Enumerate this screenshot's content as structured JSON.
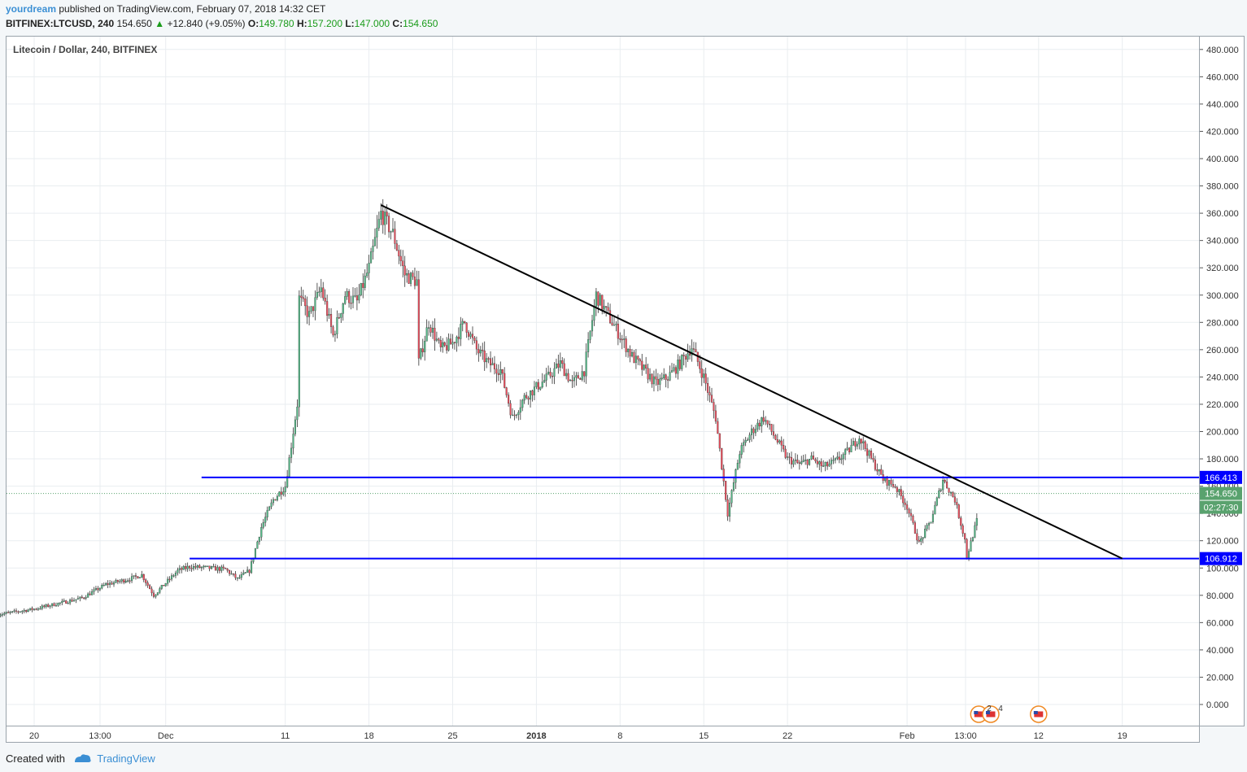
{
  "header": {
    "user": "yourdream",
    "published_text": " published on TradingView.com, February 07, 2018 14:32 CET",
    "symbol": "BITFINEX:LTCUSD, 240",
    "last": "154.650",
    "change_arrow": "▲",
    "change": "+12.840 (+9.05%)",
    "o_label": "O:",
    "o_value": "149.780",
    "h_label": "H:",
    "h_value": "157.200",
    "l_label": "L:",
    "l_value": "147.000",
    "c_label": "C:",
    "c_value": "154.650"
  },
  "chart_label": "Litecoin / Dollar, 240, BITFINEX",
  "footer": {
    "created_with": "Created with",
    "brand": "TradingView"
  },
  "colors": {
    "up": "#53b987",
    "down": "#eb4d5c",
    "level": "#0000ff",
    "trend": "#000000",
    "grid": "#e9edf0",
    "box_blue": "#0000ff",
    "box_green": "#59a26e",
    "text_green": "#1a9b1a",
    "brand": "#3b8fd4"
  },
  "chart_data": {
    "type": "candlestick",
    "title": "Litecoin / Dollar, 240, BITFINEX",
    "ylim": [
      -15,
      485
    ],
    "yticks": [
      "480.000",
      "460.000",
      "440.000",
      "420.000",
      "400.000",
      "380.000",
      "360.000",
      "340.000",
      "320.000",
      "300.000",
      "280.000",
      "260.000",
      "240.000",
      "220.000",
      "200.000",
      "180.000",
      "160.000",
      "140.000",
      "120.000",
      "100.000",
      "80.000",
      "60.000",
      "40.000",
      "20.000",
      "0.000"
    ],
    "x_labels": [
      "20",
      "13:00",
      "Dec",
      "11",
      "18",
      "25",
      "2018",
      "8",
      "15",
      "22",
      "Feb",
      "13:00",
      "12",
      "19"
    ],
    "x_labels_bold": [
      "2018"
    ],
    "x_range": [
      "2017-11-17",
      "2018-02-24"
    ],
    "x_label_dates": [
      "2017-11-20",
      "2017-11-25",
      "2017-12-01",
      "2017-12-11",
      "2017-12-18",
      "2017-12-25",
      "2018-01-01",
      "2018-01-08",
      "2018-01-15",
      "2018-01-22",
      "2018-02-01",
      "2018-02-06",
      "2018-02-12",
      "2018-02-19"
    ],
    "price_path": [
      [
        "2017-11-17",
        66
      ],
      [
        "2017-11-20",
        70
      ],
      [
        "2017-11-24",
        78
      ],
      [
        "2017-11-26",
        88
      ],
      [
        "2017-11-28",
        92
      ],
      [
        "2017-11-29",
        95
      ],
      [
        "2017-11-30",
        80
      ],
      [
        "2017-12-02",
        98
      ],
      [
        "2017-12-03",
        101
      ],
      [
        "2017-12-06",
        99
      ],
      [
        "2017-12-07",
        92
      ],
      [
        "2017-12-08",
        98
      ],
      [
        "2017-12-09",
        130
      ],
      [
        "2017-12-10",
        150
      ],
      [
        "2017-12-11",
        160
      ],
      [
        "2017-12-12",
        220
      ],
      [
        "2017-12-12",
        300
      ],
      [
        "2017-12-13",
        285
      ],
      [
        "2017-12-14",
        305
      ],
      [
        "2017-12-15",
        270
      ],
      [
        "2017-12-16",
        300
      ],
      [
        "2017-12-17",
        295
      ],
      [
        "2017-12-18",
        320
      ],
      [
        "2017-12-19",
        360
      ],
      [
        "2017-12-20",
        345
      ],
      [
        "2017-12-21",
        315
      ],
      [
        "2017-12-22",
        310
      ],
      [
        "2017-12-22",
        245
      ],
      [
        "2017-12-23",
        280
      ],
      [
        "2017-12-24",
        260
      ],
      [
        "2017-12-25",
        265
      ],
      [
        "2017-12-26",
        280
      ],
      [
        "2017-12-27",
        260
      ],
      [
        "2017-12-28",
        250
      ],
      [
        "2017-12-29",
        245
      ],
      [
        "2017-12-30",
        210
      ],
      [
        "2017-12-31",
        225
      ],
      [
        "2018-01-02",
        240
      ],
      [
        "2018-01-03",
        250
      ],
      [
        "2018-01-04",
        235
      ],
      [
        "2018-01-05",
        245
      ],
      [
        "2018-01-06",
        300
      ],
      [
        "2018-01-07",
        285
      ],
      [
        "2018-01-08",
        270
      ],
      [
        "2018-01-09",
        255
      ],
      [
        "2018-01-10",
        245
      ],
      [
        "2018-01-11",
        235
      ],
      [
        "2018-01-12",
        240
      ],
      [
        "2018-01-13",
        250
      ],
      [
        "2018-01-14",
        262
      ],
      [
        "2018-01-15",
        240
      ],
      [
        "2018-01-16",
        210
      ],
      [
        "2018-01-17",
        140
      ],
      [
        "2018-01-18",
        185
      ],
      [
        "2018-01-19",
        200
      ],
      [
        "2018-01-20",
        210
      ],
      [
        "2018-01-21",
        195
      ],
      [
        "2018-01-22",
        180
      ],
      [
        "2018-01-23",
        176
      ],
      [
        "2018-01-24",
        180
      ],
      [
        "2018-01-25",
        174
      ],
      [
        "2018-01-26",
        178
      ],
      [
        "2018-01-27",
        185
      ],
      [
        "2018-01-28",
        196
      ],
      [
        "2018-01-29",
        180
      ],
      [
        "2018-01-30",
        165
      ],
      [
        "2018-01-31",
        160
      ],
      [
        "2018-02-01",
        145
      ],
      [
        "2018-02-02",
        118
      ],
      [
        "2018-02-03",
        135
      ],
      [
        "2018-02-04",
        165
      ],
      [
        "2018-02-05",
        150
      ],
      [
        "2018-02-06",
        115
      ],
      [
        "2018-02-06",
        108
      ],
      [
        "2018-02-07",
        140
      ],
      [
        "2018-02-07",
        155
      ]
    ],
    "last_price": "154.650",
    "countdown": "02:27:30",
    "levels": [
      {
        "label": "166.413",
        "price": 166.413,
        "from": "2017-12-04"
      },
      {
        "label": "106.912",
        "price": 106.912,
        "from": "2017-12-03"
      }
    ],
    "trendline": {
      "start": [
        "2017-12-19",
        366
      ],
      "end": [
        "2018-02-19",
        106.912
      ]
    },
    "event_badges": [
      "2",
      "4"
    ]
  }
}
